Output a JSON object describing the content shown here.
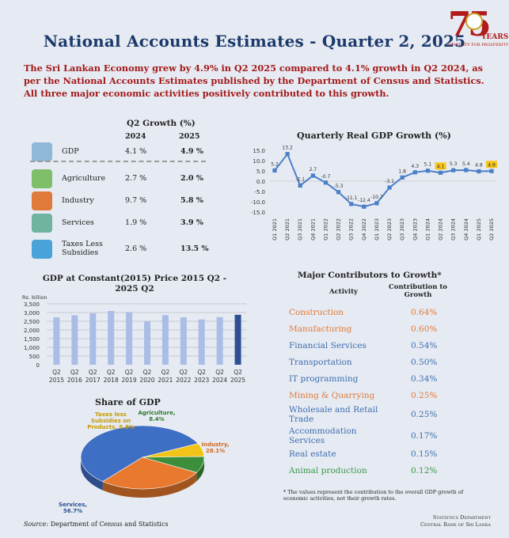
{
  "title": "National Accounts Estimates - Quarter 2, 2025",
  "logo": {
    "number": "75",
    "label": "YEARS",
    "tagline": "STABILITY FOR PROSPERITY"
  },
  "lead": "The Sri Lankan Economy grew by 4.9% in Q2 2025 compared to 4.1% growth in Q2 2024, as per the National Accounts Estimates published by the Department of Census and Statistics. All three major economic activities positively contributed to this growth.",
  "growth_table": {
    "title": "Q2 Growth (%)",
    "col_2024": "2024",
    "col_2025": "2025",
    "rows": [
      {
        "name": "GDP",
        "v2024": "4.1 %",
        "v2025": "4.9 %",
        "icon": "gdp-gears-icon",
        "color": "#8fb8d8"
      },
      {
        "name": "Agriculture",
        "v2024": "2.7 %",
        "v2025": "2.0 %",
        "icon": "agriculture-icon",
        "color": "#7fbf6a"
      },
      {
        "name": "Industry",
        "v2024": "9.7 %",
        "v2025": "5.8 %",
        "icon": "factory-icon",
        "color": "#e07a3a"
      },
      {
        "name": "Services",
        "v2024": "1.9 %",
        "v2025": "3.9 %",
        "icon": "services-icon",
        "color": "#6fb3a0"
      },
      {
        "name": "Taxes Less Subsidies",
        "v2024": "2.6 %",
        "v2025": "13.5 %",
        "icon": "tax-document-icon",
        "color": "#4aa3d8"
      }
    ]
  },
  "contributors": {
    "title": "Major Contributors to Growth*",
    "col_activity": "Activity",
    "col_contribution": "Contribution to Growth",
    "rows": [
      {
        "activity": "Construction",
        "value": "0.64%",
        "color": "#e07a3a"
      },
      {
        "activity": "Manufacturing",
        "value": "0.60%",
        "color": "#e07a3a"
      },
      {
        "activity": "Financial Services",
        "value": "0.54%",
        "color": "#3d6fb0"
      },
      {
        "activity": "Transportation",
        "value": "0.50%",
        "color": "#3d6fb0"
      },
      {
        "activity": "IT programming",
        "value": "0.34%",
        "color": "#3d6fb0"
      },
      {
        "activity": "Mining & Quarrying",
        "value": "0.25%",
        "color": "#e07a3a"
      },
      {
        "activity": "Wholesale and Retail Trade",
        "value": "0.25%",
        "color": "#3d6fb0"
      },
      {
        "activity": "Accommodation Services",
        "value": "0.17%",
        "color": "#3d6fb0"
      },
      {
        "activity": "Real estate",
        "value": "0.15%",
        "color": "#3d6fb0"
      },
      {
        "activity": "Animal production",
        "value": "0.12%",
        "color": "#3a9a4a"
      }
    ],
    "note": "* The values represent the contribution to the overall GDP growth of economic activities, not their growth rates."
  },
  "source": {
    "label": "Source:",
    "text": " Department of Census and Statistics"
  },
  "department": {
    "line1": "Statistics Department",
    "line2": "Central Bank of Sri Lanka"
  },
  "chart_data": [
    {
      "type": "line",
      "title": "Quarterly Real GDP Growth (%)",
      "x": [
        "Q1 2021",
        "Q2 2021",
        "Q3 2021",
        "Q4 2021",
        "Q1 2022",
        "Q2 2022",
        "Q3 2022",
        "Q4 2022",
        "Q1 2023",
        "Q2 2023",
        "Q3 2023",
        "Q4 2023",
        "Q1 2024",
        "Q2 2024",
        "Q3 2024",
        "Q4 2024",
        "Q1 2025",
        "Q2 2025"
      ],
      "values": [
        5.2,
        13.2,
        -2.1,
        2.7,
        -0.7,
        -5.3,
        -11.1,
        -12.4,
        -10.7,
        -3.1,
        1.8,
        4.3,
        5.1,
        4.1,
        5.3,
        5.4,
        4.8,
        4.9
      ],
      "labels": [
        "5.2",
        "13.2",
        "-2.1",
        "2.7",
        "-0.7",
        "-5.3",
        "-11.1",
        "-12.4",
        "-10.7",
        "-3.1",
        "1.8",
        "4.3",
        "5.1",
        "4.1",
        "5.3",
        "5.4",
        "4.8",
        "4.9"
      ],
      "highlighted": [
        "Q2 2024",
        "Q2 2025"
      ],
      "yticks": [
        "15.0",
        "10.0",
        "5.0",
        "0.0",
        "-5.0",
        "-10.0",
        "-15.0"
      ],
      "ylim": [
        -15,
        15
      ],
      "color": "#4a7fc8",
      "highlight_color": "#f5c518"
    },
    {
      "type": "bar",
      "title": "GDP at Constant(2015) Price 2015 Q2 - 2025 Q2",
      "ylabel": "Rs. billion",
      "categories": [
        "Q2 2015",
        "Q2 2016",
        "Q2 2017",
        "Q2 2018",
        "Q2 2019",
        "Q2 2020",
        "Q2 2021",
        "Q2 2022",
        "Q2 2023",
        "Q2 2024",
        "Q2 2025"
      ],
      "values": [
        2720,
        2840,
        2960,
        3090,
        3030,
        2500,
        2850,
        2720,
        2600,
        2730,
        2870
      ],
      "yticks": [
        "3,500",
        "3,000",
        "2,500",
        "2,000",
        "1,500",
        "1,000",
        "500",
        "0"
      ],
      "ylim": [
        0,
        3500
      ],
      "color": "#a9bde6",
      "highlight_color": "#2e4f93"
    },
    {
      "type": "pie",
      "title": "Share of GDP",
      "slices": [
        {
          "name": "Services,",
          "pct": "56.7%",
          "value": 56.7,
          "color": "#3f6fc5",
          "label_color": "#2a4f95"
        },
        {
          "name": "Taxes less Subsidies on Products,",
          "pct": "6.8%",
          "value": 6.8,
          "color": "#f2c318",
          "label_color": "#c79a00"
        },
        {
          "name": "Agriculture,",
          "pct": "8.4%",
          "value": 8.4,
          "color": "#3c8f3a",
          "label_color": "#2f7a2d"
        },
        {
          "name": "Industry,",
          "pct": "28.1%",
          "value": 28.1,
          "color": "#e8792f",
          "label_color": "#d06a20"
        }
      ]
    }
  ]
}
